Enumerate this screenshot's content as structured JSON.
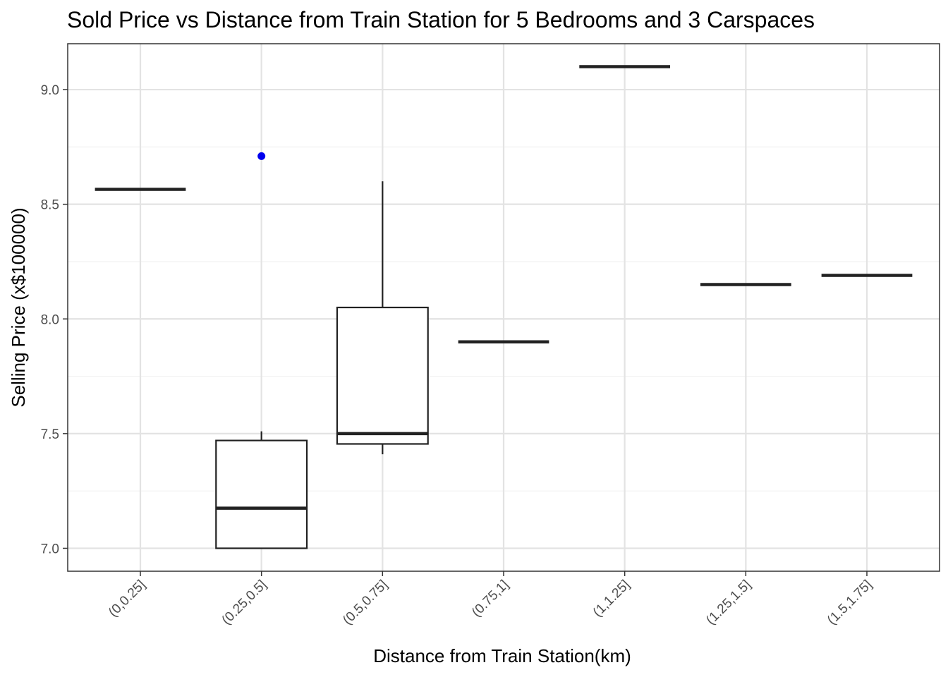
{
  "chart_data": {
    "type": "boxplot",
    "title": "Sold Price vs Distance from Train Station for 5 Bedrooms and 3 Carspaces",
    "xlabel": "Distance from Train Station(km)",
    "ylabel": "Selling Price (x$100000)",
    "ylim": [
      6.9,
      9.2
    ],
    "yticks": [
      7.0,
      7.5,
      8.0,
      8.5,
      9.0
    ],
    "ytick_labels": [
      "7.0",
      "7.5",
      "8.0",
      "8.5",
      "9.0"
    ],
    "grid": true,
    "categories": [
      "(0,0.25]",
      "(0.25,0.5]",
      "(0.5,0.75]",
      "(0.75,1]",
      "(1,1.25]",
      "(1.25,1.5]",
      "(1.5,1.75]"
    ],
    "boxes": [
      {
        "category": "(0,0.25]",
        "whisker_low": 8.565,
        "q1": 8.565,
        "median": 8.565,
        "q3": 8.565,
        "whisker_high": 8.565,
        "outliers": []
      },
      {
        "category": "(0.25,0.5]",
        "whisker_low": 7.0,
        "q1": 7.0,
        "median": 7.175,
        "q3": 7.47,
        "whisker_high": 7.51,
        "outliers": [
          8.71
        ]
      },
      {
        "category": "(0.5,0.75]",
        "whisker_low": 7.41,
        "q1": 7.455,
        "median": 7.5,
        "q3": 8.05,
        "whisker_high": 8.6,
        "outliers": []
      },
      {
        "category": "(0.75,1]",
        "whisker_low": 7.9,
        "q1": 7.9,
        "median": 7.9,
        "q3": 7.9,
        "whisker_high": 7.9,
        "outliers": []
      },
      {
        "category": "(1,1.25]",
        "whisker_low": 9.1,
        "q1": 9.1,
        "median": 9.1,
        "q3": 9.1,
        "whisker_high": 9.1,
        "outliers": []
      },
      {
        "category": "(1.25,1.5]",
        "whisker_low": 8.15,
        "q1": 8.15,
        "median": 8.15,
        "q3": 8.15,
        "whisker_high": 8.15,
        "outliers": []
      },
      {
        "category": "(1.5,1.75]",
        "whisker_low": 8.19,
        "q1": 8.19,
        "median": 8.19,
        "q3": 8.19,
        "whisker_high": 8.19,
        "outliers": []
      }
    ],
    "colors": {
      "box_line": "#222222",
      "outlier": "#0000ee",
      "grid_major": "#e3e3e3",
      "grid_minor": "#f1f1f1",
      "panel_border": "#333333",
      "tick_label": "#4d4d4d"
    }
  }
}
